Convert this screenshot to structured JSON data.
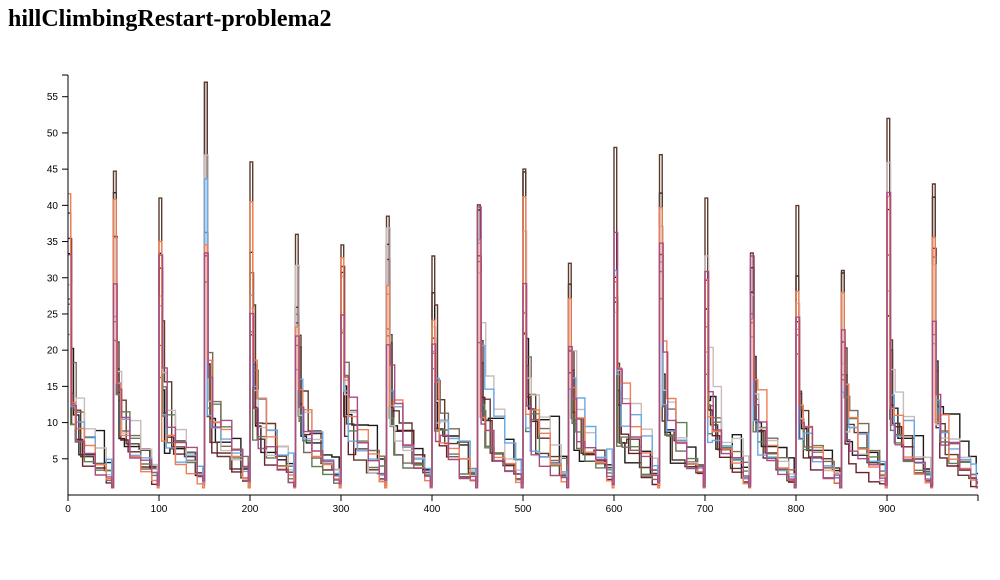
{
  "title": "hillClimbingRestart-problema2",
  "chart_data": {
    "type": "line",
    "title": "hillClimbingRestart-problema2",
    "xlabel": "",
    "ylabel": "",
    "xlim": [
      0,
      1000
    ],
    "ylim": [
      0,
      58
    ],
    "x_ticks": [
      0,
      100,
      200,
      300,
      400,
      500,
      600,
      700,
      800,
      900
    ],
    "y_ticks": [
      5,
      10,
      15,
      20,
      25,
      30,
      35,
      40,
      45,
      50,
      55
    ],
    "grid": false,
    "legend": "none",
    "restart_period": 50,
    "restart_peaks": [
      45,
      45,
      41,
      57,
      46,
      36,
      43,
      41,
      33,
      48,
      45,
      32,
      48,
      47,
      41,
      40,
      45,
      31,
      52
    ],
    "series": [
      {
        "color": "#1a1a1a",
        "restart_values": [
          [
            0,
            34
          ],
          [
            3,
            20
          ],
          [
            6,
            12
          ],
          [
            12,
            9
          ],
          [
            30,
            9
          ],
          [
            40,
            5
          ],
          [
            48,
            4
          ]
        ],
        "seed": 1
      },
      {
        "color": "#5c3a2e",
        "restart_values": [
          [
            0,
            45
          ],
          [
            3,
            27
          ],
          [
            6,
            16
          ],
          [
            14,
            10
          ],
          [
            28,
            7
          ],
          [
            40,
            5
          ],
          [
            48,
            3
          ]
        ],
        "seed": 2
      },
      {
        "color": "#6a1f2b",
        "restart_values": [
          [
            0,
            27
          ],
          [
            4,
            18
          ],
          [
            8,
            12
          ],
          [
            16,
            8
          ],
          [
            30,
            5
          ],
          [
            42,
            3
          ],
          [
            48,
            2
          ]
        ],
        "seed": 3
      },
      {
        "color": "#5f7f55",
        "restart_values": [
          [
            0,
            22
          ],
          [
            3,
            16
          ],
          [
            8,
            12
          ],
          [
            18,
            9
          ],
          [
            30,
            6
          ],
          [
            42,
            4
          ],
          [
            48,
            3
          ]
        ],
        "seed": 4
      },
      {
        "color": "#7b6a5a",
        "restart_values": [
          [
            0,
            25
          ],
          [
            4,
            18
          ],
          [
            9,
            13
          ],
          [
            18,
            10
          ],
          [
            30,
            7
          ],
          [
            42,
            5
          ],
          [
            48,
            4
          ]
        ],
        "seed": 5
      },
      {
        "color": "#c8bcbc",
        "restart_values": [
          [
            0,
            30
          ],
          [
            4,
            22
          ],
          [
            9,
            17
          ],
          [
            18,
            12
          ],
          [
            30,
            8
          ],
          [
            42,
            5
          ],
          [
            48,
            2
          ]
        ],
        "seed": 6
      },
      {
        "color": "#6aa8e6",
        "restart_values": [
          [
            0,
            26
          ],
          [
            3,
            18
          ],
          [
            8,
            13
          ],
          [
            18,
            10
          ],
          [
            30,
            7
          ],
          [
            42,
            5
          ],
          [
            48,
            3
          ]
        ],
        "seed": 7
      },
      {
        "color": "#ef7f55",
        "restart_values": [
          [
            0,
            32
          ],
          [
            3,
            20
          ],
          [
            8,
            15
          ],
          [
            18,
            10
          ],
          [
            30,
            6
          ],
          [
            42,
            3
          ],
          [
            48,
            1
          ]
        ],
        "seed": 8
      },
      {
        "color": "#a84c83",
        "restart_values": [
          [
            0,
            28
          ],
          [
            4,
            19
          ],
          [
            9,
            14
          ],
          [
            18,
            9
          ],
          [
            30,
            6
          ],
          [
            42,
            4
          ],
          [
            48,
            2
          ]
        ],
        "seed": 9
      }
    ]
  }
}
